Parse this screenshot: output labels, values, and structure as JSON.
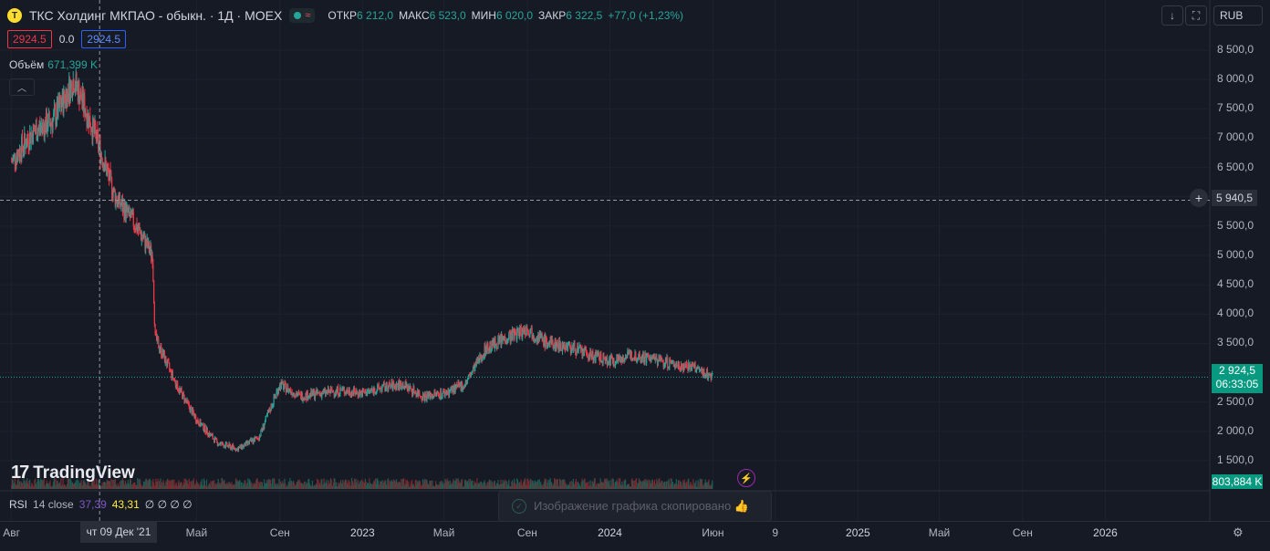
{
  "header": {
    "logo_letter": "T",
    "title": "ТКС Холдинг МКПАО - обыкн. · 1Д · MOEX",
    "ohlc": [
      {
        "k": "ОТКР",
        "v": "6 212,0"
      },
      {
        "k": "МАКС",
        "v": "6 523,0"
      },
      {
        "k": "МИН",
        "v": "6 020,0"
      },
      {
        "k": "ЗАКР",
        "v": "6 322,5"
      }
    ],
    "change": "+77,0 (+1,23%)"
  },
  "price_boxes": {
    "sell": "2924.5",
    "spread": "0.0",
    "buy": "2924.5"
  },
  "volume": {
    "label": "Объём",
    "value": "671,399 K"
  },
  "currency": "RUB",
  "icons": {
    "download": "download-icon",
    "fullscreen": "fullscreen-icon",
    "settings": "gear-icon"
  },
  "axis": {
    "y_ticks": [
      "8 500,0",
      "8 000,0",
      "7 500,0",
      "7 000,0",
      "6 500,0",
      "6 000,0",
      "5 500,0",
      "5 000,0",
      "4 500,0",
      "4 000,0",
      "3 500,0",
      "3 000,0",
      "2 500,0",
      "2 000,0",
      "1 500,0"
    ],
    "x_ticks": [
      "Авг",
      "Май",
      "Сен",
      "2023",
      "Май",
      "Сен",
      "2024",
      "Июн",
      "9",
      "2025",
      "Май",
      "Сен",
      "2026"
    ],
    "x_bold": [
      "2023",
      "2024",
      "2025",
      "2026"
    ],
    "crosshair_date": "чт 09 Дек '21"
  },
  "last_price": {
    "value": "2 924,5",
    "timer": "06:33:05"
  },
  "hline_price": "5 940,5",
  "volume_last": "803,884 K",
  "brand": "TradingView",
  "rsi": {
    "label": "RSI",
    "params": "14 close",
    "v1": "37,39",
    "v2": "43,31",
    "nulls": "∅ ∅ ∅ ∅"
  },
  "toast": "Изображение графика скопировано 👍",
  "colors": {
    "up": "#26a69a",
    "down": "#f23645",
    "bg": "#161a25"
  },
  "chart_data": {
    "type": "candlestick",
    "ylim": [
      1000,
      8700
    ],
    "dates": [
      "2021-08-01",
      "2021-09-01",
      "2021-10-01",
      "2021-11-01",
      "2021-12-01",
      "2022-01-01",
      "2022-02-01",
      "2022-02-25",
      "2022-03-01",
      "2022-04-01",
      "2022-05-01",
      "2022-06-01",
      "2022-07-01",
      "2022-08-01",
      "2022-09-01",
      "2022-10-01",
      "2022-11-01",
      "2022-12-01",
      "2023-01-01",
      "2023-02-01",
      "2023-03-01",
      "2023-04-01",
      "2023-05-01",
      "2023-06-01",
      "2023-07-01",
      "2023-08-01",
      "2023-09-01",
      "2023-10-01",
      "2023-11-01",
      "2023-12-01",
      "2024-01-01",
      "2024-02-01",
      "2024-03-01",
      "2024-04-01",
      "2024-05-01",
      "2024-06-01"
    ],
    "close": [
      6600,
      7100,
      7300,
      8000,
      7100,
      6000,
      5500,
      5000,
      3600,
      2800,
      2200,
      1800,
      1700,
      1900,
      2800,
      2600,
      2650,
      2700,
      2650,
      2750,
      2800,
      2600,
      2650,
      2800,
      3400,
      3600,
      3750,
      3500,
      3450,
      3300,
      3200,
      3300,
      3250,
      3150,
      3100,
      2924.5
    ]
  }
}
